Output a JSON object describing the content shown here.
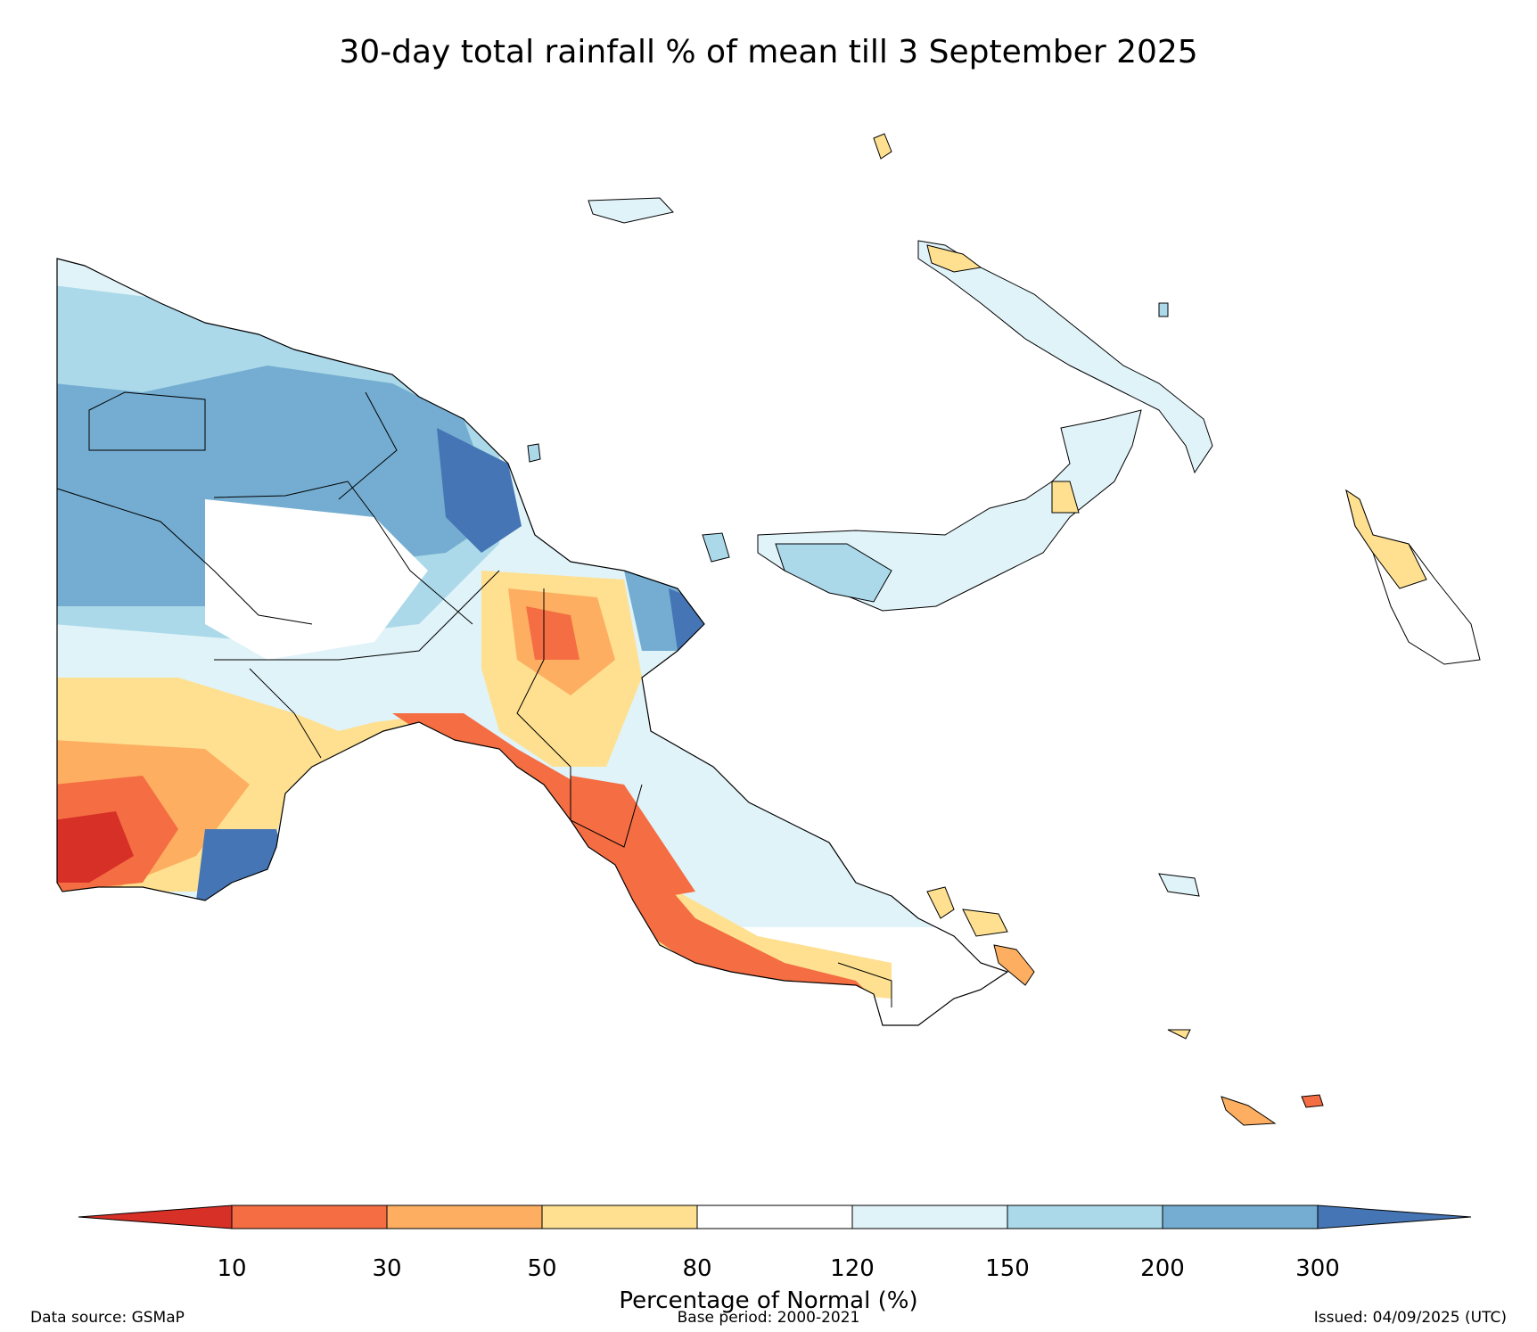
{
  "title": "30-day total rainfall % of mean till 3 September 2025",
  "legend": {
    "title": "Percentage of Normal (%)",
    "ticks": [
      "10",
      "30",
      "50",
      "80",
      "120",
      "150",
      "200",
      "300"
    ],
    "colors": [
      "#d73027",
      "#f46d43",
      "#fdae61",
      "#fee090",
      "#ffffff",
      "#e0f3f8",
      "#abd9e9",
      "#74add1",
      "#4575b4"
    ]
  },
  "footer": {
    "source": "Data source: GSMaP",
    "base_period": "Base period: 2000-2021",
    "issued": "Issued: 04/09/2025 (UTC)"
  },
  "icons": {
    "map": "rainfall-anomaly-map"
  }
}
